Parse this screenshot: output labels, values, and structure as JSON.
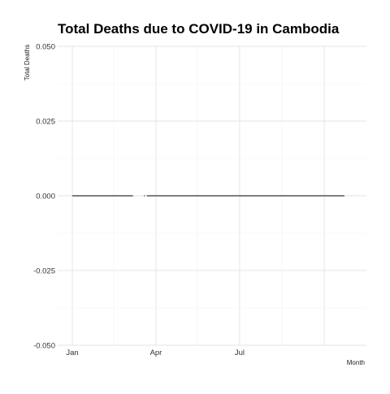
{
  "chart_data": {
    "type": "line",
    "title": "Total Deaths due to COVID-19 in Cambodia",
    "xlabel": "Month",
    "ylabel": "Total Deaths",
    "x_ticks": [
      "Jan",
      "Apr",
      "Jul"
    ],
    "y_ticks": [
      "0.050",
      "0.025",
      "0.000",
      "-0.025",
      "-0.050"
    ],
    "ylim": [
      -0.05,
      0.05
    ],
    "xlim": [
      "2020-01-01",
      "2020-10-31"
    ],
    "grid": true,
    "legend": "none",
    "series": [
      {
        "color": "#333333",
        "segments": [
          {
            "x": [
              "2020-01-01",
              "2020-03-07"
            ],
            "y": [
              0,
              0
            ]
          },
          {
            "x": [
              "2020-03-19",
              "2020-03-20"
            ],
            "y": [
              0,
              0
            ]
          },
          {
            "x": [
              "2020-03-22",
              "2020-10-23"
            ],
            "y": [
              0,
              0
            ]
          }
        ]
      }
    ]
  }
}
